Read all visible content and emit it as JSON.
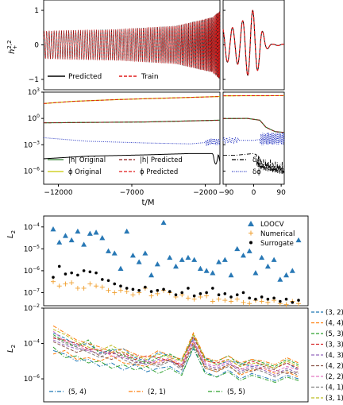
{
  "chart_data": [
    {
      "id": "top_waveform",
      "type": "line",
      "ylabel": "h_+^{2,2}",
      "ylabel_main": "h",
      "ylabel_sup": "2,2",
      "ylabel_sub": "+",
      "left_xlim": [
        -13000,
        -1000
      ],
      "right_xlim": [
        -100,
        100
      ],
      "ylim": [
        -1.3,
        1.3
      ],
      "y_ticks": [
        "1",
        "0",
        "−1"
      ],
      "y_tick_values": [
        1,
        0,
        -1
      ],
      "legend_position": "lower-left",
      "series": [
        {
          "name": "Predicted",
          "color": "#000000",
          "style": "solid"
        },
        {
          "name": "Train",
          "color": "#e01b1b",
          "style": "dashed"
        }
      ],
      "amplitude_points": [
        [
          -13000,
          0.4
        ],
        [
          -8000,
          0.45
        ],
        [
          -4000,
          0.55
        ],
        [
          -1500,
          0.8
        ],
        [
          -1000,
          1.0
        ]
      ],
      "right_amplitude_points": [
        [
          -60,
          0.5
        ],
        [
          -30,
          0.75
        ],
        [
          -10,
          1.0
        ],
        [
          0,
          1.0
        ],
        [
          20,
          0.6
        ],
        [
          40,
          0.15
        ],
        [
          60,
          0.02
        ]
      ]
    },
    {
      "id": "amp_phase_errors",
      "type": "line",
      "log_scale": true,
      "ylim_log10": [
        -7.5,
        3
      ],
      "y_ticks": [
        "10^3",
        "10^0",
        "10^-3",
        "10^-6"
      ],
      "y_tick_exponents": [
        3,
        0,
        -3,
        -6
      ],
      "x_ticks_left": [
        "−12000",
        "−7000",
        "−2000"
      ],
      "x_tick_values_left": [
        -12000,
        -7000,
        -2000
      ],
      "x_ticks_right": [
        "−90",
        "0",
        "90"
      ],
      "x_tick_values_right": [
        -90,
        0,
        90
      ],
      "xlabel": "t/M",
      "left_legend": [
        {
          "name": "|h| Original",
          "color": "#2c7a2c",
          "style": "solid"
        },
        {
          "name": "|h| Predicted",
          "color": "#8b1a1a",
          "style": "dashed"
        },
        {
          "name": "ϕ Original",
          "color": "#c8c800",
          "style": "solid"
        },
        {
          "name": "ϕ Predicted",
          "color": "#e01b1b",
          "style": "dashed"
        }
      ],
      "right_legend": [
        {
          "name": "δA",
          "color": "#000000",
          "style": "dashdot"
        },
        {
          "name": "δϕ",
          "color": "#1f2fbf",
          "style": "dotted"
        }
      ],
      "phase_log10": [
        [
          -13000,
          1.7
        ],
        [
          -11000,
          1.95
        ],
        [
          -8000,
          2.15
        ],
        [
          -5000,
          2.3
        ],
        [
          -2000,
          2.45
        ],
        [
          -1000,
          2.5
        ],
        [
          100,
          2.6
        ]
      ],
      "amp_log10": [
        [
          -13000,
          -0.5
        ],
        [
          -6000,
          -0.4
        ],
        [
          -1000,
          -0.2
        ],
        [
          -20,
          0.0
        ],
        [
          20,
          -0.2
        ],
        [
          40,
          -1.0
        ],
        [
          70,
          -1.5
        ],
        [
          100,
          -1.6
        ]
      ],
      "delta_phi_log10": [
        [
          -13000,
          -2.2
        ],
        [
          -10000,
          -2.6
        ],
        [
          -6000,
          -2.8
        ],
        [
          -3000,
          -2.9
        ],
        [
          -1000,
          -2.6
        ],
        [
          -80,
          -2.5
        ],
        [
          0,
          -2.5
        ],
        [
          40,
          -2.3
        ],
        [
          100,
          -2.3
        ]
      ],
      "delta_A_log10": [
        [
          -13000,
          -4.6
        ],
        [
          -10000,
          -4.3
        ],
        [
          -6000,
          -4.15
        ],
        [
          -3000,
          -4.0
        ],
        [
          -1000,
          -4.0
        ],
        [
          -60,
          -4.2
        ],
        [
          0,
          -4.0
        ],
        [
          30,
          -4.5
        ],
        [
          100,
          -5.0
        ]
      ]
    },
    {
      "id": "loocv_scatter",
      "type": "scatter",
      "log_scale": true,
      "ylabel": "L_2",
      "ylabel_main": "L",
      "ylabel_sub": "2",
      "ylim_log10": [
        -7.6,
        -3.5
      ],
      "y_ticks": [
        "10^-4",
        "10^-5",
        "10^-6",
        "10^-7"
      ],
      "y_tick_exponents": [
        -4,
        -5,
        -6,
        -7
      ],
      "legend_position": "top-right",
      "series": [
        {
          "name": "LOOCV",
          "marker": "triangle",
          "color": "#2878b5",
          "values": [
            -4.1,
            -4.7,
            -4.4,
            -4.6,
            -4.2,
            -4.8,
            -4.3,
            -4.25,
            -4.5,
            -5.1,
            -5.2,
            -5.9,
            -4.2,
            -5.3,
            -5.6,
            -5.2,
            -6.2,
            -5.7,
            -3.8,
            -5.4,
            -5.8,
            -5.5,
            -5.4,
            -5.5,
            -5.9,
            -6.0,
            -6.1,
            -5.6,
            -5.5,
            -6.2,
            -5.0,
            -5.3,
            -5.1,
            -6.1,
            -5.4,
            -5.8,
            -5.5,
            -6.4,
            -6.2,
            -6.0,
            -4.6
          ]
        },
        {
          "name": "Numerical",
          "marker": "plus",
          "color": "#f0a030",
          "values": [
            -6.5,
            -6.7,
            -6.6,
            -6.55,
            -6.8,
            -6.8,
            -6.6,
            -6.7,
            -6.75,
            -6.9,
            -7.0,
            -6.9,
            -6.95,
            -7.1,
            -7.0,
            -6.8,
            -7.15,
            -7.05,
            -6.9,
            -7.0,
            -7.2,
            -7.1,
            -7.25,
            -7.3,
            -7.2,
            -7.15,
            -7.4,
            -7.3,
            -7.35,
            -7.4,
            -7.3,
            -7.45,
            -7.5,
            -7.35,
            -7.4,
            -7.45,
            -7.35,
            -7.5,
            -7.55,
            -7.4,
            -7.5
          ]
        },
        {
          "name": "Surrogate",
          "marker": "circle",
          "color": "#000000",
          "values": [
            -6.3,
            -5.8,
            -6.15,
            -6.1,
            -6.2,
            -6.0,
            -6.05,
            -6.1,
            -6.4,
            -6.45,
            -6.6,
            -6.7,
            -6.8,
            -6.85,
            -6.9,
            -6.75,
            -6.95,
            -6.9,
            -6.85,
            -6.95,
            -7.1,
            -7.0,
            -6.8,
            -7.15,
            -7.05,
            -7.0,
            -6.8,
            -7.1,
            -7.05,
            -7.2,
            -7.1,
            -7.0,
            -7.25,
            -7.3,
            -7.2,
            -7.3,
            -7.25,
            -7.4,
            -7.3,
            -7.45,
            -7.35
          ]
        }
      ]
    },
    {
      "id": "mode_errors",
      "type": "line",
      "log_scale": true,
      "ylabel": "L_2",
      "ylabel_main": "L",
      "ylabel_sub": "2",
      "ylim_log10": [
        -7.3,
        -2
      ],
      "y_ticks": [
        "10^-2",
        "10^-4",
        "10^-6"
      ],
      "y_tick_exponents": [
        -2,
        -4,
        -6
      ],
      "legend_position": "right",
      "series": [
        {
          "name": "(3, 2)",
          "color": "#1f77b4",
          "style": "dashed",
          "values": [
            -3.4,
            -3.7,
            -4.1,
            -4.0,
            -4.5,
            -4.4,
            -4.3,
            -4.8,
            -5.0,
            -4.5,
            -4.7,
            -4.9,
            -3.7,
            -4.8,
            -5.2,
            -5.0,
            -5.1,
            -5.3,
            -5.2,
            -5.4,
            -5.1,
            -5.5
          ]
        },
        {
          "name": "(4, 4)",
          "color": "#ff7f0e",
          "style": "dashed",
          "values": [
            -4.6,
            -4.4,
            -4.9,
            -4.8,
            -5.0,
            -4.7,
            -5.1,
            -5.2,
            -5.3,
            -5.0,
            -4.9,
            -5.3,
            -3.9,
            -5.4,
            -5.6,
            -5.2,
            -5.8,
            -5.5,
            -5.4,
            -5.7,
            -5.6,
            -5.9
          ]
        },
        {
          "name": "(5, 3)",
          "color": "#2ca02c",
          "style": "dashed",
          "values": [
            -3.5,
            -3.9,
            -4.2,
            -3.8,
            -4.6,
            -4.3,
            -4.7,
            -4.9,
            -5.1,
            -4.8,
            -4.6,
            -5.0,
            -3.5,
            -4.9,
            -5.0,
            -4.7,
            -5.2,
            -4.9,
            -5.1,
            -5.3,
            -4.9,
            -5.2
          ]
        },
        {
          "name": "(3, 3)",
          "color": "#d62728",
          "style": "dashed",
          "values": [
            -3.7,
            -3.8,
            -4.0,
            -4.3,
            -4.4,
            -4.6,
            -4.5,
            -4.9,
            -4.7,
            -4.8,
            -5.0,
            -5.2,
            -3.6,
            -5.0,
            -5.1,
            -4.9,
            -5.3,
            -5.0,
            -5.2,
            -5.4,
            -5.1,
            -5.4
          ]
        },
        {
          "name": "(4, 3)",
          "color": "#9467bd",
          "style": "dashed",
          "values": [
            -3.8,
            -4.1,
            -4.3,
            -4.4,
            -4.6,
            -4.5,
            -4.8,
            -5.0,
            -5.2,
            -4.9,
            -5.0,
            -5.3,
            -3.8,
            -5.2,
            -5.4,
            -5.1,
            -5.6,
            -5.3,
            -5.5,
            -5.8,
            -5.4,
            -5.7
          ]
        },
        {
          "name": "(4, 2)",
          "color": "#8c564b",
          "style": "dashed",
          "values": [
            -3.9,
            -4.2,
            -4.5,
            -4.3,
            -4.7,
            -4.9,
            -4.6,
            -5.1,
            -5.0,
            -5.2,
            -4.9,
            -5.4,
            -4.0,
            -5.3,
            -5.5,
            -5.2,
            -5.4,
            -5.6,
            -5.3,
            -5.5,
            -5.7,
            -5.6
          ]
        },
        {
          "name": "(2, 2)",
          "color": "#e377c2",
          "style": "dashed",
          "values": [
            -3.3,
            -3.9,
            -4.1,
            -4.4,
            -4.3,
            -4.7,
            -4.8,
            -4.6,
            -5.0,
            -5.1,
            -4.8,
            -5.2,
            -3.9,
            -5.1,
            -5.3,
            -5.0,
            -5.5,
            -5.2,
            -5.4,
            -5.6,
            -5.3,
            -5.5
          ]
        },
        {
          "name": "(4, 1)",
          "color": "#7f7f7f",
          "style": "dashed",
          "values": [
            -3.6,
            -4.0,
            -4.2,
            -4.5,
            -4.8,
            -4.4,
            -4.9,
            -5.2,
            -5.1,
            -5.3,
            -5.0,
            -5.5,
            -4.1,
            -5.4,
            -5.6,
            -5.3,
            -5.7,
            -5.4,
            -5.6,
            -5.9,
            -5.5,
            -5.8
          ]
        },
        {
          "name": "(3, 1)",
          "color": "#bcbd22",
          "style": "dashed",
          "values": [
            -3.2,
            -3.5,
            -3.9,
            -4.2,
            -4.4,
            -4.1,
            -4.5,
            -4.7,
            -4.9,
            -4.6,
            -4.8,
            -5.0,
            -3.5,
            -4.9,
            -5.2,
            -4.9,
            -5.3,
            -5.1,
            -5.2,
            -5.4,
            -5.0,
            -5.3
          ]
        },
        {
          "name": "(5, 4)",
          "color": "#1f77b4",
          "style": "dashdot",
          "values": [
            -4.4,
            -4.6,
            -5.0,
            -4.9,
            -5.3,
            -5.1,
            -5.5,
            -5.2,
            -5.6,
            -5.4,
            -5.3,
            -5.7,
            -4.3,
            -5.6,
            -5.9,
            -5.5,
            -6.0,
            -5.7,
            -5.9,
            -6.1,
            -5.8,
            -6.0
          ]
        },
        {
          "name": "(2, 1)",
          "color": "#ff7f0e",
          "style": "dashdot",
          "values": [
            -3.0,
            -3.4,
            -3.8,
            -4.0,
            -4.2,
            -4.5,
            -4.3,
            -4.6,
            -4.8,
            -4.4,
            -4.7,
            -4.9,
            -3.4,
            -4.8,
            -5.0,
            -4.7,
            -5.1,
            -4.9,
            -5.0,
            -5.2,
            -4.8,
            -5.1
          ]
        },
        {
          "name": "(5, 5)",
          "color": "#2ca02c",
          "style": "dashdot",
          "values": [
            -4.2,
            -4.8,
            -4.7,
            -5.1,
            -5.0,
            -5.4,
            -5.2,
            -5.5,
            -5.3,
            -5.7,
            -5.4,
            -5.8,
            -4.2,
            -5.7,
            -5.9,
            -5.6,
            -6.1,
            -5.8,
            -6.0,
            -6.2,
            -5.9,
            -6.1
          ]
        }
      ]
    }
  ]
}
